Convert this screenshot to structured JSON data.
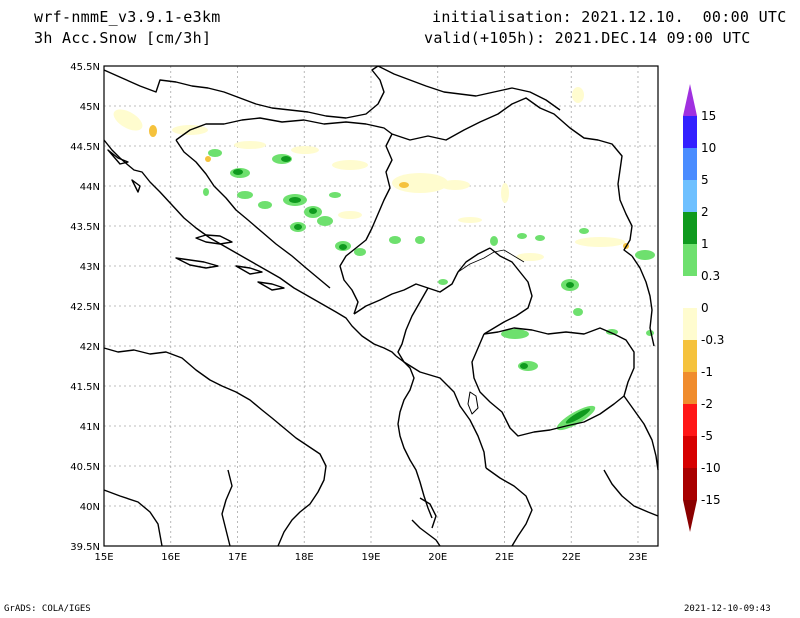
{
  "header": {
    "model": "wrf-nmmE_v3.9.1-e3km",
    "variable": "3h Acc.Snow [cm/3h]",
    "init": "initialisation: 2021.12.10.  00:00 UTC",
    "valid": "valid(+105h): 2021.DEC.14 09:00 UTC"
  },
  "footer": {
    "left": "GrADS: COLA/IGES",
    "right": "2021-12-10-09:43"
  },
  "map": {
    "lat_labels": [
      "45.5N",
      "45N",
      "44.5N",
      "44N",
      "43.5N",
      "43N",
      "42.5N",
      "42N",
      "41.5N",
      "41N",
      "40.5N",
      "40N",
      "39.5N"
    ],
    "lon_labels": [
      "15E",
      "16E",
      "17E",
      "18E",
      "19E",
      "20E",
      "21E",
      "22E",
      "23E"
    ],
    "lat_range": [
      39.5,
      45.5
    ],
    "lon_range": [
      15.0,
      23.3
    ],
    "grid": true
  },
  "colorbar": {
    "labels": [
      "15",
      "10",
      "5",
      "2",
      "1",
      "0.3",
      "0",
      "-0.3",
      "-1",
      "-2",
      "-5",
      "-10",
      "-15"
    ],
    "colors": [
      "#3320ff",
      "#4a8cff",
      "#6ec0ff",
      "#0f9a1e",
      "#6ee06e",
      "#ffffff",
      "#fffccf",
      "#f5c23c",
      "#f08c2d",
      "#ff1616",
      "#d60000",
      "#a80000"
    ],
    "top_color": "#a030e0",
    "bottom_color": "#8a0000"
  }
}
